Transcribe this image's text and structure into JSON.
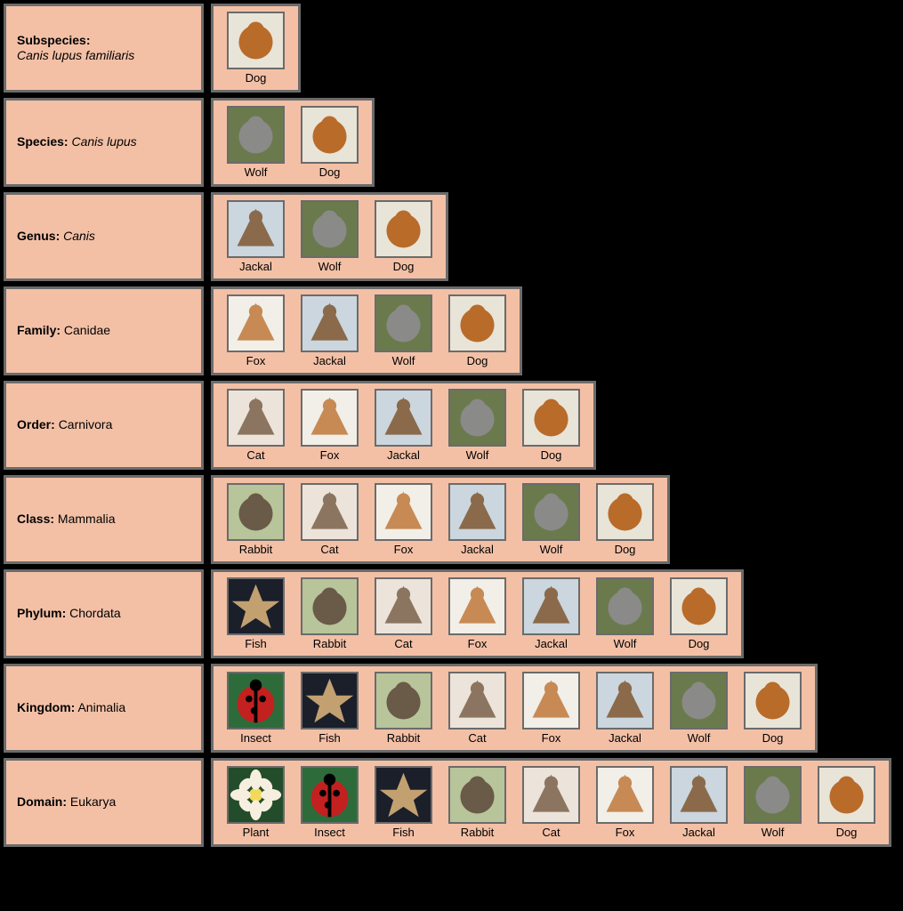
{
  "colors": {
    "cell_bg": "#f3c0a6",
    "cell_border": "#6b6b6b",
    "page_bg": "#000000"
  },
  "animal_art": {
    "Dog": {
      "bg": "#e8e4d8",
      "fg": "#b96b2a",
      "shape": "circle"
    },
    "Wolf": {
      "bg": "#6a7a4d",
      "fg": "#8a8a88",
      "shape": "circle"
    },
    "Jackal": {
      "bg": "#cbd6de",
      "fg": "#8a6a4a",
      "shape": "tri"
    },
    "Fox": {
      "bg": "#f2efe8",
      "fg": "#c78a54",
      "shape": "tri"
    },
    "Cat": {
      "bg": "#ece4da",
      "fg": "#8c7560",
      "shape": "tri"
    },
    "Rabbit": {
      "bg": "#b8c49a",
      "fg": "#6a5a48",
      "shape": "circle"
    },
    "Fish": {
      "bg": "#1a1f2a",
      "fg": "#c2a070",
      "shape": "star"
    },
    "Insect": {
      "bg": "#2e6b3a",
      "fg": "#c32020",
      "shape": "circle"
    },
    "Plant": {
      "bg": "#234d2a",
      "fg": "#f6efe0",
      "shape": "flower"
    }
  },
  "rows": [
    {
      "rank": "Subspecies:",
      "value": "Canis lupus familiaris",
      "italic": true,
      "break_after_rank": true,
      "animals": [
        "Dog"
      ]
    },
    {
      "rank": "Species:",
      "value": "Canis lupus",
      "italic": true,
      "break_after_rank": false,
      "animals": [
        "Wolf",
        "Dog"
      ]
    },
    {
      "rank": "Genus:",
      "value": "Canis",
      "italic": true,
      "break_after_rank": false,
      "animals": [
        "Jackal",
        "Wolf",
        "Dog"
      ]
    },
    {
      "rank": "Family:",
      "value": "Canidae",
      "italic": false,
      "break_after_rank": false,
      "animals": [
        "Fox",
        "Jackal",
        "Wolf",
        "Dog"
      ]
    },
    {
      "rank": "Order:",
      "value": "Carnivora",
      "italic": false,
      "break_after_rank": false,
      "animals": [
        "Cat",
        "Fox",
        "Jackal",
        "Wolf",
        "Dog"
      ]
    },
    {
      "rank": "Class:",
      "value": "Mammalia",
      "italic": false,
      "break_after_rank": false,
      "animals": [
        "Rabbit",
        "Cat",
        "Fox",
        "Jackal",
        "Wolf",
        "Dog"
      ]
    },
    {
      "rank": "Phylum:",
      "value": "Chordata",
      "italic": false,
      "break_after_rank": false,
      "animals": [
        "Fish",
        "Rabbit",
        "Cat",
        "Fox",
        "Jackal",
        "Wolf",
        "Dog"
      ]
    },
    {
      "rank": "Kingdom:",
      "value": "Animalia",
      "italic": false,
      "break_after_rank": false,
      "animals": [
        "Insect",
        "Fish",
        "Rabbit",
        "Cat",
        "Fox",
        "Jackal",
        "Wolf",
        "Dog"
      ]
    },
    {
      "rank": "Domain:",
      "value": "Eukarya",
      "italic": false,
      "break_after_rank": false,
      "animals": [
        "Plant",
        "Insect",
        "Fish",
        "Rabbit",
        "Cat",
        "Fox",
        "Jackal",
        "Wolf",
        "Dog"
      ]
    }
  ]
}
